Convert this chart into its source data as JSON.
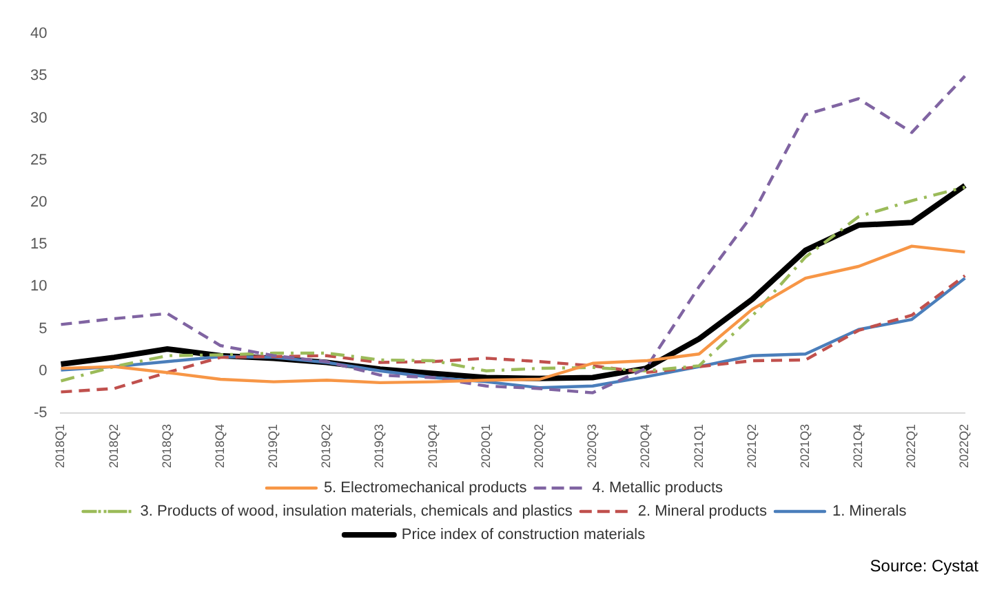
{
  "chart_data": {
    "type": "line",
    "categories": [
      "2018Q1",
      "2018Q2",
      "2018Q3",
      "2018Q4",
      "2019Q1",
      "2019Q2",
      "2019Q3",
      "2019Q4",
      "2020Q1",
      "2020Q2",
      "2020Q3",
      "2020Q4",
      "2021Q1",
      "2021Q2",
      "2021Q3",
      "2021Q4",
      "2022Q1",
      "2022Q2"
    ],
    "ylim": [
      -5,
      40
    ],
    "yticks": [
      -5,
      0,
      5,
      10,
      15,
      20,
      25,
      30,
      35,
      40
    ],
    "grid": false,
    "legend": "bottom",
    "marker": "none",
    "annotations": [
      "Source: Cystat"
    ],
    "series": [
      {
        "name": "Price index of construction materials",
        "color": "#000000",
        "line_style": "solid",
        "values": [
          0.8,
          1.6,
          2.6,
          1.8,
          1.5,
          1.0,
          0.2,
          -0.3,
          -0.8,
          -0.9,
          -0.8,
          0.3,
          3.8,
          8.5,
          14.3,
          17.3,
          17.6,
          22.0
        ]
      },
      {
        "name": "1. Minerals",
        "color": "#4a7ebb",
        "line_style": "solid",
        "values": [
          0.1,
          0.5,
          1.1,
          1.7,
          1.6,
          1.0,
          0.0,
          -0.8,
          -1.3,
          -2.0,
          -1.8,
          -0.7,
          0.5,
          1.8,
          2.0,
          4.9,
          6.1,
          11.0
        ]
      },
      {
        "name": "2. Mineral products",
        "color": "#c0504d",
        "line_style": "dashed",
        "values": [
          -2.5,
          -2.1,
          -0.2,
          1.6,
          1.7,
          1.8,
          1.0,
          1.1,
          1.5,
          1.1,
          0.6,
          -0.2,
          0.5,
          1.2,
          1.3,
          4.8,
          6.6,
          11.3
        ]
      },
      {
        "name": "3. Products of wood, insulation materials, chemicals and plastics",
        "color": "#9bbb59",
        "line_style": "dashdot",
        "values": [
          -1.2,
          0.5,
          1.8,
          1.9,
          2.1,
          2.1,
          1.3,
          1.2,
          0.0,
          0.3,
          0.4,
          0.0,
          0.6,
          6.5,
          13.5,
          18.3,
          20.2,
          21.8
        ]
      },
      {
        "name": "4. Metallic products",
        "color": "#8064a2",
        "line_style": "dashed",
        "values": [
          5.5,
          6.2,
          6.8,
          3.0,
          1.8,
          1.1,
          -0.5,
          -0.8,
          -1.8,
          -2.1,
          -2.6,
          0.3,
          10.0,
          18.5,
          30.4,
          32.3,
          28.3,
          35.0
        ]
      },
      {
        "name": "5. Electromechanical products",
        "color": "#f79646",
        "line_style": "solid",
        "values": [
          0.3,
          0.5,
          -0.2,
          -1.0,
          -1.3,
          -1.1,
          -1.4,
          -1.3,
          -1.1,
          -1.0,
          0.9,
          1.2,
          2.0,
          7.3,
          11.0,
          12.4,
          14.8,
          14.1
        ]
      }
    ]
  }
}
